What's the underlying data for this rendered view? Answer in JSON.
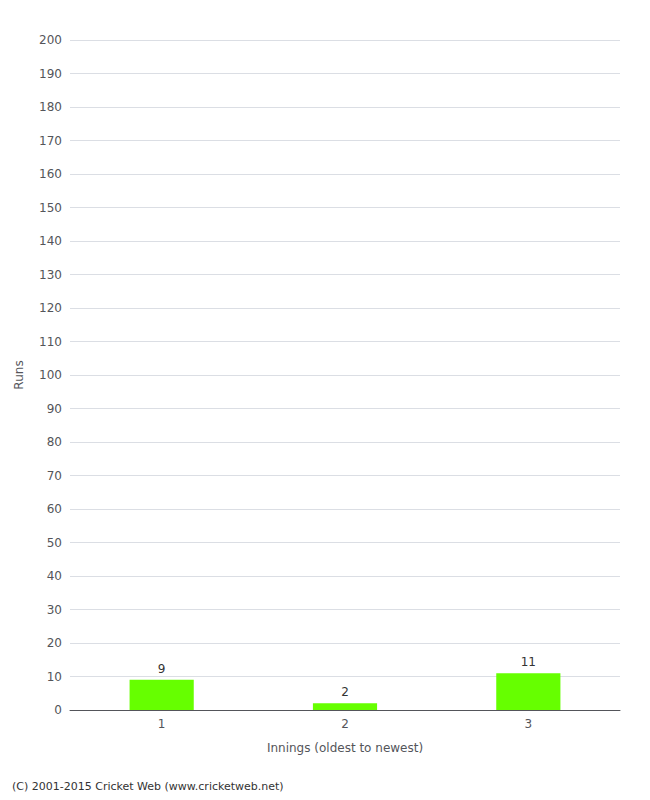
{
  "chart_data": {
    "type": "bar",
    "xlabel": "Innings (oldest to newest)",
    "ylabel": "Runs",
    "categories": [
      "1",
      "2",
      "3"
    ],
    "values": [
      9,
      2,
      11
    ],
    "color": "#66ff00",
    "ylim": [
      0,
      200
    ],
    "yticks": [
      0,
      10,
      20,
      30,
      40,
      50,
      60,
      70,
      80,
      90,
      100,
      110,
      120,
      130,
      140,
      150,
      160,
      170,
      180,
      190,
      200
    ],
    "grid": true,
    "data_labels": true,
    "annotations": [
      "(C) 2001-2015 Cricket Web (www.cricketweb.net)"
    ]
  }
}
